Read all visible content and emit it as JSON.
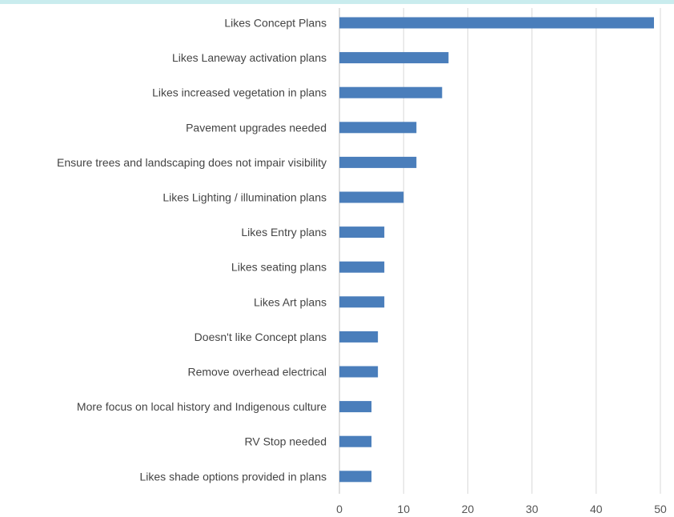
{
  "colors": {
    "bar": "#4a7ebb",
    "top_band": "#c9ecee"
  },
  "chart_data": {
    "type": "bar",
    "orientation": "horizontal",
    "categories": [
      "Likes Concept Plans",
      "Likes Laneway activation plans",
      "Likes increased vegetation in plans",
      "Pavement upgrades needed",
      "Ensure trees and landscaping does not impair visibility",
      "Likes Lighting / illumination plans",
      "Likes Entry plans",
      "Likes seating plans",
      "Likes Art plans",
      "Doesn't like Concept plans",
      "Remove overhead electrical",
      "More focus on local history and Indigenous culture",
      "RV Stop needed",
      "Likes shade options provided in plans"
    ],
    "values": [
      49,
      17,
      16,
      12,
      12,
      10,
      7,
      7,
      7,
      6,
      6,
      5,
      5,
      5
    ],
    "xlim": [
      0,
      50
    ],
    "xticks": [
      "0",
      "10",
      "20",
      "30",
      "40",
      "50"
    ],
    "grid": true,
    "legend": "none"
  }
}
